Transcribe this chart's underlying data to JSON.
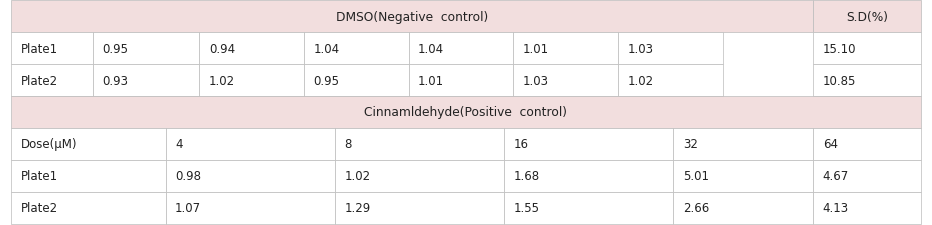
{
  "header_bg": "#f2dede",
  "cell_bg": "#ffffff",
  "border_color": "#bbbbbb",
  "font_size": 8.5,
  "header_font_size": 8.8,
  "dmso_header": "DMSO(Negative  control)",
  "dmso_sd_header": "S.D(%)",
  "dmso_rows": [
    {
      "label": "Plate1",
      "values": [
        "0.95",
        "0.94",
        "1.04",
        "1.04",
        "1.01",
        "1.03"
      ],
      "sd": "15.10"
    },
    {
      "label": "Plate2",
      "values": [
        "0.93",
        "1.02",
        "0.95",
        "1.01",
        "1.03",
        "1.02"
      ],
      "sd": "10.85"
    }
  ],
  "cinnam_header": "Cinnamldehyde(Positive  control)",
  "cinnam_dose_label": "Dose(μM)",
  "cinnam_doses": [
    "4",
    "8",
    "16",
    "32",
    "64"
  ],
  "cinnam_rows": [
    {
      "label": "Plate1",
      "values": [
        "0.98",
        "1.02",
        "1.68",
        "5.01",
        "4.67"
      ]
    },
    {
      "label": "Plate2",
      "values": [
        "1.07",
        "1.29",
        "1.55",
        "2.66",
        "4.13"
      ]
    }
  ],
  "dmso_col_boundaries": [
    0.0,
    0.09,
    0.207,
    0.322,
    0.437,
    0.552,
    0.667,
    0.782,
    0.882,
    1.0
  ],
  "cinnam_col_boundaries": [
    0.0,
    0.17,
    0.356,
    0.542,
    0.728,
    0.882,
    1.0
  ]
}
